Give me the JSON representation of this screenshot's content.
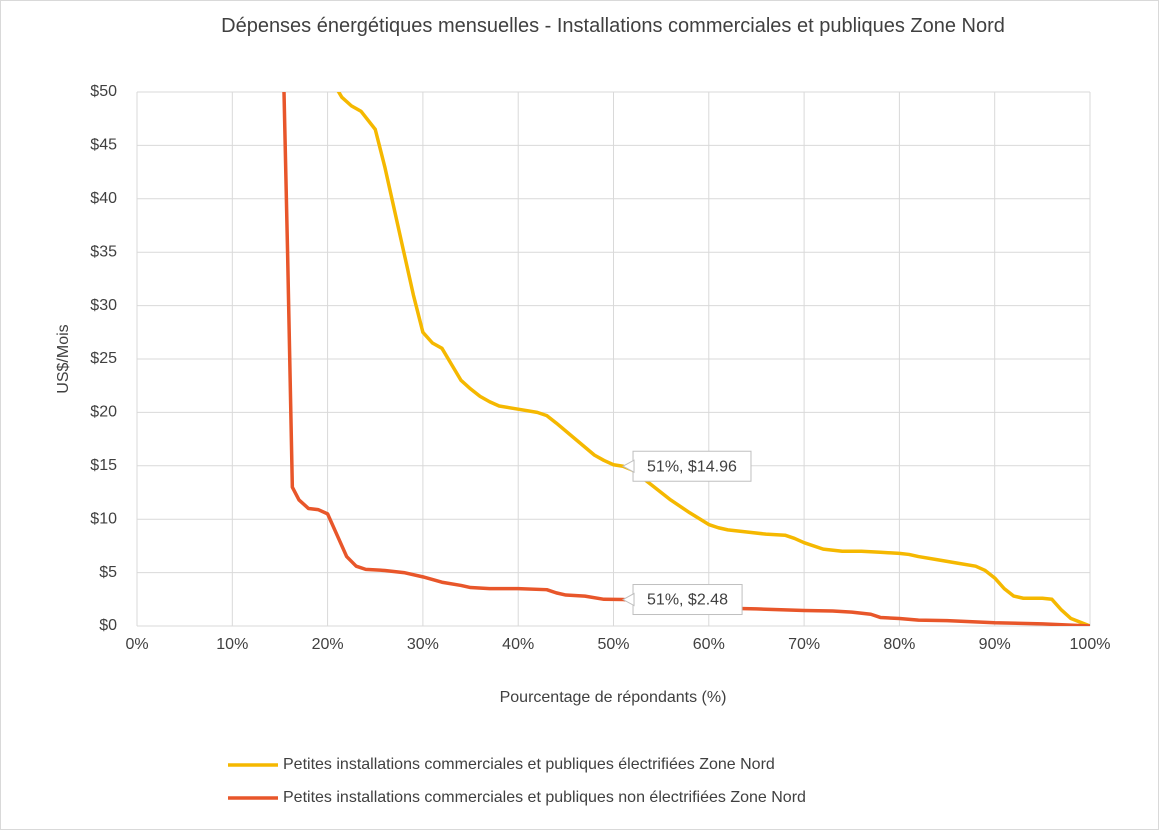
{
  "chart_data": {
    "type": "line",
    "title": "Dépenses énergétiques mensuelles - Installations commerciales et publiques Zone Nord",
    "x_label": "Pourcentage de répondants (%)",
    "y_label": "US$/Mois",
    "xlim": [
      0,
      100
    ],
    "ylim": [
      0,
      50
    ],
    "xticks": [
      {
        "value": 0,
        "label": "0%"
      },
      {
        "value": 10,
        "label": "10%"
      },
      {
        "value": 20,
        "label": "20%"
      },
      {
        "value": 30,
        "label": "30%"
      },
      {
        "value": 40,
        "label": "40%"
      },
      {
        "value": 50,
        "label": "50%"
      },
      {
        "value": 60,
        "label": "60%"
      },
      {
        "value": 70,
        "label": "70%"
      },
      {
        "value": 80,
        "label": "80%"
      },
      {
        "value": 90,
        "label": "90%"
      },
      {
        "value": 100,
        "label": "100%"
      }
    ],
    "yticks": [
      {
        "value": 0,
        "label": "$0"
      },
      {
        "value": 5,
        "label": "$5"
      },
      {
        "value": 10,
        "label": "$10"
      },
      {
        "value": 15,
        "label": "$15"
      },
      {
        "value": 20,
        "label": "$20"
      },
      {
        "value": 25,
        "label": "$25"
      },
      {
        "value": 30,
        "label": "$30"
      },
      {
        "value": 35,
        "label": "$35"
      },
      {
        "value": 40,
        "label": "$40"
      },
      {
        "value": 45,
        "label": "$45"
      },
      {
        "value": 50,
        "label": "$50"
      }
    ],
    "grid": true,
    "legend": "bottom",
    "series": [
      {
        "name": "Petites installations commerciales et publiques électrifiées Zone Nord",
        "color": "#f5b800",
        "x": [
          20.5,
          21.5,
          22.5,
          23.5,
          25,
          26,
          27,
          28,
          29,
          30,
          31,
          32,
          33,
          34,
          35,
          36,
          37,
          38,
          40,
          42,
          43,
          44,
          46,
          48,
          49,
          50,
          51,
          52,
          54,
          56,
          58,
          60,
          61,
          62,
          64,
          66,
          68,
          69,
          70,
          72,
          74,
          76,
          78,
          80,
          81,
          82,
          84,
          86,
          88,
          89,
          90,
          91,
          92,
          93,
          95,
          96,
          97,
          98,
          100
        ],
        "values": [
          51,
          49.5,
          48.7,
          48.2,
          46.5,
          43,
          39,
          35,
          31,
          27.5,
          26.5,
          26,
          24.5,
          23,
          22.2,
          21.5,
          21,
          20.6,
          20.3,
          20,
          19.7,
          19,
          17.5,
          16,
          15.5,
          15.1,
          14.96,
          14.6,
          13.2,
          11.8,
          10.6,
          9.5,
          9.2,
          9,
          8.8,
          8.6,
          8.5,
          8.2,
          7.8,
          7.2,
          7,
          7,
          6.9,
          6.8,
          6.7,
          6.5,
          6.2,
          5.9,
          5.6,
          5.2,
          4.5,
          3.5,
          2.8,
          2.6,
          2.6,
          2.5,
          1.5,
          0.7,
          0
        ]
      },
      {
        "name": "Petites installations commerciales et publiques non électrifiées Zone Nord",
        "color": "#e8562a",
        "x": [
          15.3,
          15.8,
          16.3,
          17,
          18,
          19,
          20,
          21,
          22,
          23,
          24,
          26,
          28,
          30,
          32,
          34,
          35,
          37,
          40,
          43,
          44,
          45,
          47,
          49,
          51,
          52,
          54,
          56,
          60,
          65,
          70,
          73,
          75,
          77,
          78,
          80,
          82,
          85,
          90,
          95,
          100
        ],
        "values": [
          55,
          35,
          13,
          11.8,
          11,
          10.9,
          10.5,
          8.5,
          6.5,
          5.6,
          5.3,
          5.2,
          5,
          4.6,
          4.1,
          3.8,
          3.6,
          3.5,
          3.5,
          3.4,
          3.1,
          2.9,
          2.8,
          2.5,
          2.48,
          2.4,
          2.1,
          1.9,
          1.7,
          1.6,
          1.45,
          1.4,
          1.3,
          1.1,
          0.8,
          0.7,
          0.55,
          0.5,
          0.3,
          0.2,
          0
        ]
      }
    ],
    "annotations": [
      {
        "text": "51%, $14.96",
        "x": 51,
        "y": 14.96
      },
      {
        "text": "51%, $2.48",
        "x": 51,
        "y": 2.48
      }
    ]
  }
}
